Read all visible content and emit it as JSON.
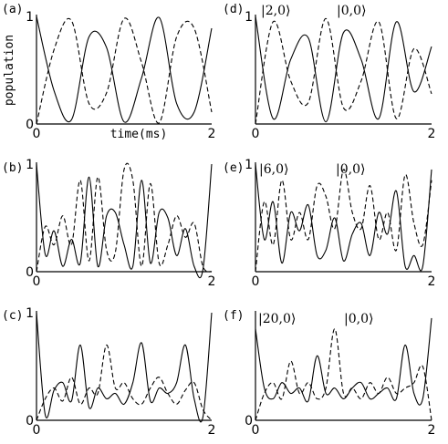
{
  "chart_data": [
    {
      "type": "line",
      "panel": "(a)",
      "xlim": [
        0,
        2
      ],
      "ylim": [
        0,
        1
      ],
      "xticks": [
        "0",
        "2"
      ],
      "yticks": [
        "0",
        "1"
      ],
      "xlabel": "time(ms)",
      "ylabel": "population",
      "annotations": [],
      "x": [
        0,
        0.2,
        0.4,
        0.6,
        0.8,
        1.0,
        1.2,
        1.4,
        1.6,
        1.8,
        2.0
      ],
      "series": [
        {
          "style": "solid",
          "values": [
            1.0,
            0.31,
            0.04,
            0.81,
            0.71,
            0.02,
            0.43,
            0.99,
            0.19,
            0.11,
            0.89
          ]
        },
        {
          "style": "dashed",
          "values": [
            0.0,
            0.69,
            0.96,
            0.19,
            0.29,
            0.98,
            0.57,
            0.01,
            0.81,
            0.89,
            0.11
          ]
        }
      ]
    },
    {
      "type": "line",
      "panel": "(b)",
      "xlim": [
        0,
        2
      ],
      "ylim": [
        0,
        1
      ],
      "xticks": [
        "0",
        "2"
      ],
      "yticks": [
        "0",
        "1"
      ],
      "xlabel": "",
      "ylabel": "",
      "annotations": [],
      "x": [
        0,
        0.1,
        0.2,
        0.3,
        0.4,
        0.5,
        0.6,
        0.7,
        0.8,
        0.9,
        1.0,
        1.1,
        1.2,
        1.3,
        1.4,
        1.5,
        1.6,
        1.7,
        1.8,
        1.9,
        2.0
      ],
      "series": [
        {
          "style": "solid",
          "values": [
            1.0,
            0.16,
            0.38,
            0.05,
            0.3,
            0.08,
            0.88,
            0.05,
            0.52,
            0.55,
            0.25,
            0.05,
            0.85,
            0.08,
            0.55,
            0.5,
            0.15,
            0.4,
            0.05,
            0.02,
            1.0
          ]
        },
        {
          "style": "dashed",
          "values": [
            0.0,
            0.42,
            0.25,
            0.52,
            0.25,
            0.85,
            0.1,
            0.88,
            0.2,
            0.18,
            0.95,
            0.85,
            0.05,
            0.82,
            0.08,
            0.25,
            0.52,
            0.32,
            0.45,
            0.05,
            0.0
          ]
        }
      ]
    },
    {
      "type": "line",
      "panel": "(c)",
      "xlim": [
        0,
        2
      ],
      "ylim": [
        0,
        1
      ],
      "xticks": [
        "0",
        "2"
      ],
      "yticks": [
        "0",
        "1"
      ],
      "xlabel": "",
      "ylabel": "",
      "annotations": [],
      "x": [
        0,
        0.1,
        0.2,
        0.3,
        0.4,
        0.5,
        0.6,
        0.7,
        0.8,
        0.9,
        1.0,
        1.1,
        1.2,
        1.3,
        1.4,
        1.5,
        1.6,
        1.7,
        1.8,
        1.9,
        2.0
      ],
      "series": [
        {
          "style": "solid",
          "values": [
            1.0,
            0.05,
            0.28,
            0.35,
            0.18,
            0.7,
            0.12,
            0.3,
            0.2,
            0.25,
            0.15,
            0.35,
            0.72,
            0.18,
            0.3,
            0.25,
            0.35,
            0.7,
            0.2,
            0.03,
            1.0
          ]
        },
        {
          "style": "dashed",
          "values": [
            0.0,
            0.2,
            0.3,
            0.18,
            0.4,
            0.15,
            0.3,
            0.25,
            0.7,
            0.3,
            0.35,
            0.2,
            0.15,
            0.3,
            0.4,
            0.25,
            0.15,
            0.28,
            0.35,
            0.1,
            0.0
          ]
        }
      ]
    },
    {
      "type": "line",
      "panel": "(d)",
      "xlim": [
        0,
        2
      ],
      "ylim": [
        0,
        1
      ],
      "xticks": [
        "0",
        "2"
      ],
      "yticks": [
        "1"
      ],
      "xlabel": "",
      "ylabel": "",
      "annotations": [
        "|2,0⟩",
        "|0,0⟩"
      ],
      "x": [
        0,
        0.2,
        0.4,
        0.6,
        0.8,
        1.0,
        1.2,
        1.4,
        1.6,
        1.8,
        2.0
      ],
      "series": [
        {
          "style": "solid",
          "values": [
            1.0,
            0.05,
            0.6,
            0.8,
            0.02,
            0.85,
            0.6,
            0.05,
            0.95,
            0.3,
            0.72
          ]
        },
        {
          "style": "dashed",
          "values": [
            0.0,
            0.95,
            0.4,
            0.2,
            0.98,
            0.15,
            0.4,
            0.95,
            0.05,
            0.7,
            0.28
          ]
        }
      ]
    },
    {
      "type": "line",
      "panel": "(e)",
      "xlim": [
        0,
        2
      ],
      "ylim": [
        0,
        1
      ],
      "xticks": [
        "0",
        "2"
      ],
      "yticks": [
        "1"
      ],
      "xlabel": "",
      "ylabel": "",
      "annotations": [
        "|6,0⟩",
        "|0,0⟩"
      ],
      "x": [
        0,
        0.1,
        0.2,
        0.3,
        0.4,
        0.5,
        0.6,
        0.7,
        0.8,
        0.9,
        1.0,
        1.1,
        1.2,
        1.3,
        1.4,
        1.5,
        1.6,
        1.7,
        1.8,
        1.9,
        2.0
      ],
      "series": [
        {
          "style": "solid",
          "values": [
            1.0,
            0.3,
            0.65,
            0.08,
            0.55,
            0.38,
            0.62,
            0.15,
            0.2,
            0.5,
            0.1,
            0.35,
            0.45,
            0.15,
            0.55,
            0.35,
            0.75,
            0.05,
            0.15,
            0.05,
            0.95
          ]
        },
        {
          "style": "dashed",
          "values": [
            0.0,
            0.65,
            0.25,
            0.85,
            0.3,
            0.55,
            0.3,
            0.8,
            0.7,
            0.4,
            0.95,
            0.55,
            0.4,
            0.8,
            0.3,
            0.55,
            0.2,
            0.9,
            0.45,
            0.25,
            0.85
          ]
        }
      ]
    },
    {
      "type": "line",
      "panel": "(f)",
      "xlim": [
        0,
        2
      ],
      "ylim": [
        0,
        1
      ],
      "xticks": [
        "0",
        "2"
      ],
      "yticks": [
        "0"
      ],
      "xlabel": "",
      "ylabel": "",
      "annotations": [
        "|20,0⟩",
        "|0,0⟩"
      ],
      "x": [
        0,
        0.1,
        0.2,
        0.3,
        0.4,
        0.5,
        0.6,
        0.7,
        0.8,
        0.9,
        1.0,
        1.1,
        1.2,
        1.3,
        1.4,
        1.5,
        1.6,
        1.7,
        1.8,
        1.9,
        2.0
      ],
      "series": [
        {
          "style": "solid",
          "values": [
            0.85,
            0.3,
            0.2,
            0.35,
            0.25,
            0.3,
            0.18,
            0.6,
            0.25,
            0.3,
            0.2,
            0.3,
            0.35,
            0.2,
            0.25,
            0.3,
            0.2,
            0.7,
            0.25,
            0.2,
            0.95
          ]
        },
        {
          "style": "dashed",
          "values": [
            0.0,
            0.25,
            0.35,
            0.2,
            0.55,
            0.25,
            0.35,
            0.2,
            0.3,
            0.85,
            0.25,
            0.3,
            0.2,
            0.35,
            0.25,
            0.4,
            0.25,
            0.3,
            0.35,
            0.5,
            0.0
          ]
        }
      ]
    }
  ]
}
